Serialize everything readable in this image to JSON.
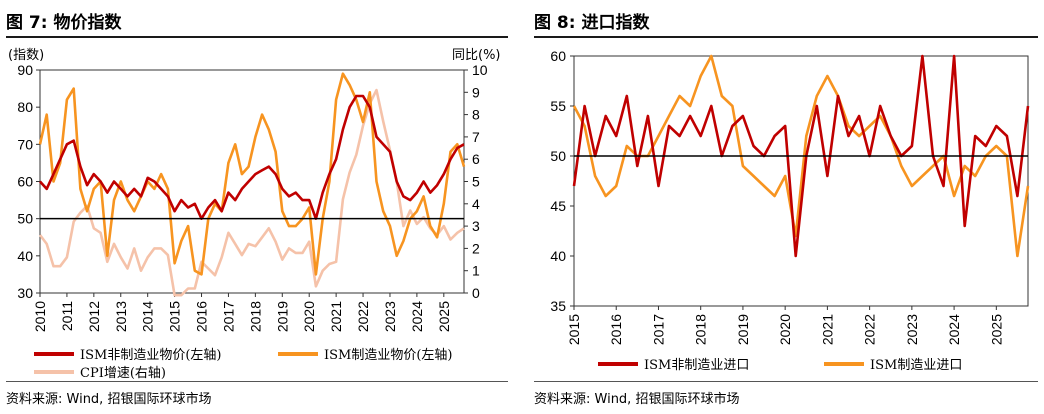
{
  "left": {
    "title": "图 7: 物价指数",
    "left_unit": "(指数)",
    "right_unit": "同比(%)",
    "source": "资料来源: Wind, 招银国际环球市场",
    "legend": [
      "ISM非制造业物价(左轴)",
      "ISM制造业物价(左轴)",
      "CPI增速(右轴)"
    ]
  },
  "right": {
    "title": "图 8: 进口指数",
    "source": "资料来源: Wind, 招银国际环球市场",
    "legend": [
      "ISM非制造业进口",
      "ISM制造业进口"
    ]
  },
  "colors": {
    "dark_red": "#c00000",
    "orange": "#f79420",
    "light_pink": "#f5c2a9"
  },
  "chart_data": [
    {
      "type": "line",
      "title": "",
      "x_tick_labels": [
        "2010",
        "2011",
        "2012",
        "2013",
        "2014",
        "2015",
        "2016",
        "2017",
        "2018",
        "2019",
        "2020",
        "2021",
        "2022",
        "2023",
        "2024",
        "2025"
      ],
      "y_left_ticks": [
        30,
        40,
        50,
        60,
        70,
        80,
        90
      ],
      "y_right_ticks": [
        0,
        1,
        2,
        3,
        4,
        5,
        6,
        7,
        8,
        9,
        10
      ],
      "ylim_left": [
        30,
        90
      ],
      "ylim_right": [
        0,
        10
      ],
      "xlim": [
        2010,
        2025.75
      ],
      "reference_line": 50,
      "series": [
        {
          "name": "ISM非制造业物价(左轴)",
          "axis": "left",
          "x": [
            2010.0,
            2010.25,
            2010.5,
            2010.75,
            2011.0,
            2011.25,
            2011.5,
            2011.75,
            2012.0,
            2012.25,
            2012.5,
            2012.75,
            2013.0,
            2013.25,
            2013.5,
            2013.75,
            2014.0,
            2014.25,
            2014.5,
            2014.75,
            2015.0,
            2015.25,
            2015.5,
            2015.75,
            2016.0,
            2016.25,
            2016.5,
            2016.75,
            2017.0,
            2017.25,
            2017.5,
            2017.75,
            2018.0,
            2018.25,
            2018.5,
            2018.75,
            2019.0,
            2019.25,
            2019.5,
            2019.75,
            2020.0,
            2020.25,
            2020.5,
            2020.75,
            2021.0,
            2021.25,
            2021.5,
            2021.75,
            2022.0,
            2022.25,
            2022.5,
            2022.75,
            2023.0,
            2023.25,
            2023.5,
            2023.75,
            2024.0,
            2024.25,
            2024.5,
            2024.75,
            2025.0,
            2025.25,
            2025.5,
            2025.75
          ],
          "values": [
            60,
            58,
            62,
            66,
            70,
            71,
            64,
            59,
            62,
            60,
            57,
            60,
            58,
            56,
            58,
            56,
            61,
            60,
            58,
            56,
            52,
            55,
            53,
            54,
            50,
            53,
            55,
            52,
            57,
            55,
            58,
            60,
            62,
            63,
            64,
            62,
            58,
            56,
            57,
            55,
            55,
            50,
            57,
            62,
            66,
            74,
            80,
            83,
            83,
            80,
            72,
            70,
            68,
            60,
            56,
            55,
            57,
            60,
            57,
            59,
            62,
            66,
            69,
            70
          ]
        },
        {
          "name": "ISM制造业物价(左轴)",
          "axis": "left",
          "x": [
            2010.0,
            2010.25,
            2010.5,
            2010.75,
            2011.0,
            2011.25,
            2011.5,
            2011.75,
            2012.0,
            2012.25,
            2012.5,
            2012.75,
            2013.0,
            2013.25,
            2013.5,
            2013.75,
            2014.0,
            2014.25,
            2014.5,
            2014.75,
            2015.0,
            2015.25,
            2015.5,
            2015.75,
            2016.0,
            2016.25,
            2016.5,
            2016.75,
            2017.0,
            2017.25,
            2017.5,
            2017.75,
            2018.0,
            2018.25,
            2018.5,
            2018.75,
            2019.0,
            2019.25,
            2019.5,
            2019.75,
            2020.0,
            2020.25,
            2020.5,
            2020.75,
            2021.0,
            2021.25,
            2021.5,
            2021.75,
            2022.0,
            2022.25,
            2022.5,
            2022.75,
            2023.0,
            2023.25,
            2023.5,
            2023.75,
            2024.0,
            2024.25,
            2024.5,
            2024.75,
            2025.0,
            2025.25,
            2025.5,
            2025.75
          ],
          "values": [
            70,
            78,
            60,
            65,
            82,
            85,
            58,
            52,
            58,
            60,
            40,
            55,
            60,
            55,
            52,
            56,
            60,
            58,
            62,
            58,
            38,
            44,
            48,
            36,
            35,
            50,
            54,
            52,
            65,
            70,
            62,
            64,
            72,
            78,
            74,
            68,
            52,
            48,
            48,
            50,
            53,
            35,
            50,
            60,
            82,
            89,
            86,
            82,
            76,
            84,
            60,
            52,
            48,
            40,
            44,
            50,
            52,
            56,
            48,
            45,
            54,
            68,
            70,
            64
          ]
        },
        {
          "name": "CPI增速(右轴)",
          "axis": "right",
          "x": [
            2010.0,
            2010.25,
            2010.5,
            2010.75,
            2011.0,
            2011.25,
            2011.5,
            2011.75,
            2012.0,
            2012.25,
            2012.5,
            2012.75,
            2013.0,
            2013.25,
            2013.5,
            2013.75,
            2014.0,
            2014.25,
            2014.5,
            2014.75,
            2015.0,
            2015.25,
            2015.5,
            2015.75,
            2016.0,
            2016.25,
            2016.5,
            2016.75,
            2017.0,
            2017.25,
            2017.5,
            2017.75,
            2018.0,
            2018.25,
            2018.5,
            2018.75,
            2019.0,
            2019.25,
            2019.5,
            2019.75,
            2020.0,
            2020.25,
            2020.5,
            2020.75,
            2021.0,
            2021.25,
            2021.5,
            2021.75,
            2022.0,
            2022.25,
            2022.5,
            2022.75,
            2023.0,
            2023.25,
            2023.5,
            2023.75,
            2024.0,
            2024.25,
            2024.5,
            2024.75,
            2025.0,
            2025.25,
            2025.5,
            2025.75
          ],
          "values": [
            2.6,
            2.2,
            1.2,
            1.2,
            1.6,
            3.2,
            3.6,
            3.9,
            2.9,
            2.7,
            1.4,
            2.2,
            1.6,
            1.1,
            2.0,
            1.0,
            1.6,
            2.0,
            2.0,
            1.7,
            -0.1,
            -0.1,
            0.2,
            0.2,
            1.4,
            1.1,
            0.8,
            1.6,
            2.7,
            2.2,
            1.7,
            2.2,
            2.1,
            2.5,
            2.9,
            2.3,
            1.5,
            2.0,
            1.8,
            1.8,
            2.3,
            0.3,
            1.0,
            1.3,
            1.4,
            4.2,
            5.4,
            6.2,
            7.5,
            8.5,
            9.1,
            7.7,
            6.4,
            5.0,
            3.0,
            3.7,
            3.1,
            3.4,
            2.9,
            2.6,
            3.0,
            2.4,
            2.7,
            2.9
          ]
        }
      ]
    },
    {
      "type": "line",
      "title": "",
      "x_tick_labels": [
        "2015",
        "2016",
        "2017",
        "2018",
        "2019",
        "2020",
        "2021",
        "2022",
        "2023",
        "2024",
        "2025"
      ],
      "y_ticks": [
        35,
        40,
        45,
        50,
        55,
        60
      ],
      "ylim": [
        35,
        60
      ],
      "xlim": [
        2015,
        2025.75
      ],
      "reference_line": 50,
      "series": [
        {
          "name": "ISM非制造业进口",
          "x": [
            2015.0,
            2015.25,
            2015.5,
            2015.75,
            2016.0,
            2016.25,
            2016.5,
            2016.75,
            2017.0,
            2017.25,
            2017.5,
            2017.75,
            2018.0,
            2018.25,
            2018.5,
            2018.75,
            2019.0,
            2019.25,
            2019.5,
            2019.75,
            2020.0,
            2020.25,
            2020.5,
            2020.75,
            2021.0,
            2021.25,
            2021.5,
            2021.75,
            2022.0,
            2022.25,
            2022.5,
            2022.75,
            2023.0,
            2023.25,
            2023.5,
            2023.75,
            2024.0,
            2024.25,
            2024.5,
            2024.75,
            2025.0,
            2025.25,
            2025.5,
            2025.75
          ],
          "values": [
            47,
            55,
            50,
            54,
            52,
            56,
            49,
            54,
            47,
            53,
            52,
            54,
            52,
            55,
            50,
            53,
            54,
            51,
            50,
            52,
            53,
            40,
            50,
            55,
            48,
            56,
            52,
            54,
            50,
            55,
            52,
            50,
            51,
            60,
            50,
            47,
            60,
            43,
            52,
            51,
            53,
            52,
            46,
            55
          ]
        },
        {
          "name": "ISM制造业进口",
          "x": [
            2015.0,
            2015.25,
            2015.5,
            2015.75,
            2016.0,
            2016.25,
            2016.5,
            2016.75,
            2017.0,
            2017.25,
            2017.5,
            2017.75,
            2018.0,
            2018.25,
            2018.5,
            2018.75,
            2019.0,
            2019.25,
            2019.5,
            2019.75,
            2020.0,
            2020.25,
            2020.5,
            2020.75,
            2021.0,
            2021.25,
            2021.5,
            2021.75,
            2022.0,
            2022.25,
            2022.5,
            2022.75,
            2023.0,
            2023.25,
            2023.5,
            2023.75,
            2024.0,
            2024.25,
            2024.5,
            2024.75,
            2025.0,
            2025.25,
            2025.5,
            2025.75
          ],
          "values": [
            55,
            53,
            48,
            46,
            47,
            51,
            50,
            50,
            52,
            54,
            56,
            55,
            58,
            60,
            56,
            55,
            49,
            48,
            47,
            46,
            48,
            42,
            52,
            56,
            58,
            56,
            53,
            52,
            53,
            54,
            52,
            49,
            47,
            48,
            49,
            50,
            46,
            49,
            48,
            50,
            51,
            50,
            40,
            47
          ]
        }
      ]
    }
  ]
}
